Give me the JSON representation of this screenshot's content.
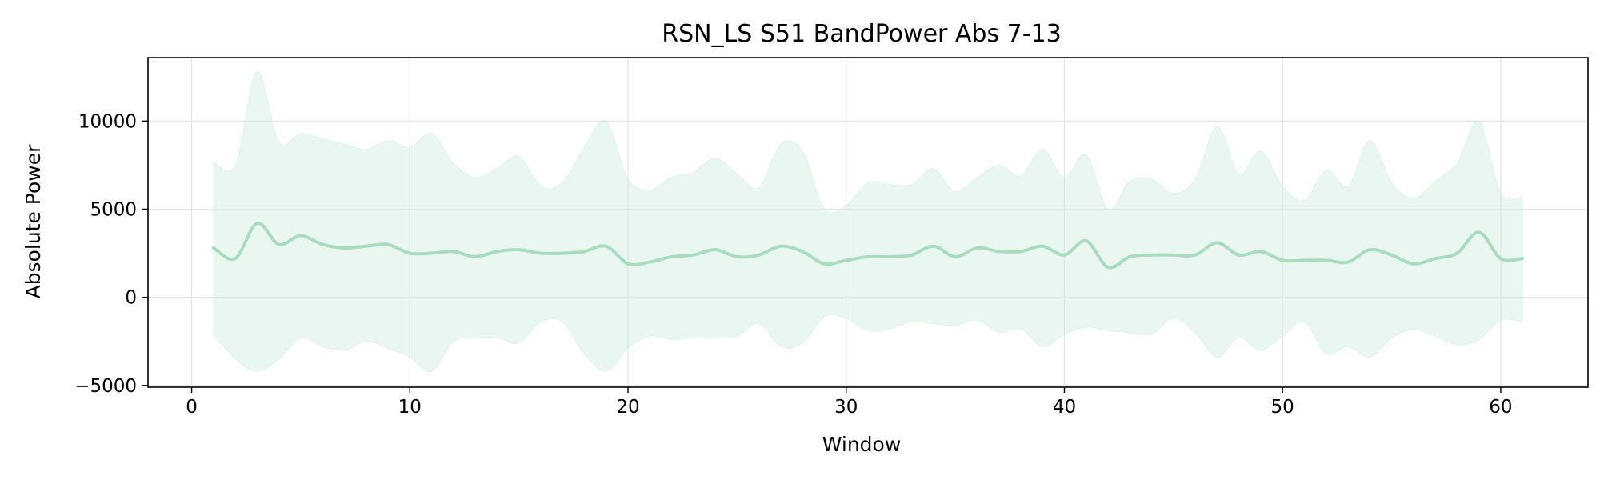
{
  "chart_data": {
    "type": "line",
    "title": "RSN_LS S51 BandPower Abs 7-13",
    "xlabel": "Window",
    "ylabel": "Absolute Power",
    "xlim": [
      -2,
      64
    ],
    "ylim": [
      -5100,
      13600
    ],
    "xticks": [
      0,
      10,
      20,
      30,
      40,
      50,
      60
    ],
    "yticks": [
      -5000,
      0,
      5000,
      10000
    ],
    "ytick_labels": [
      "−5000",
      "0",
      "5000",
      "10000"
    ],
    "grid": true,
    "legend": "none",
    "colors": {
      "line": "#a8dcbf",
      "band": "#cfeedd",
      "grid": "#e6e6e6"
    },
    "x": [
      1,
      2,
      3,
      4,
      5,
      6,
      7,
      8,
      9,
      10,
      11,
      12,
      13,
      14,
      15,
      16,
      17,
      18,
      19,
      20,
      21,
      22,
      23,
      24,
      25,
      26,
      27,
      28,
      29,
      30,
      31,
      32,
      33,
      34,
      35,
      36,
      37,
      38,
      39,
      40,
      41,
      42,
      43,
      44,
      45,
      46,
      47,
      48,
      49,
      50,
      51,
      52,
      53,
      54,
      55,
      56,
      57,
      58,
      59,
      60,
      61
    ],
    "series": [
      {
        "values": [
          2800,
          2200,
          4200,
          3000,
          3500,
          3000,
          2800,
          2900,
          3000,
          2500,
          2500,
          2600,
          2300,
          2600,
          2700,
          2500,
          2500,
          2600,
          2900,
          1900,
          2000,
          2300,
          2400,
          2700,
          2300,
          2400,
          2900,
          2600,
          1900,
          2100,
          2300,
          2300,
          2400,
          2900,
          2300,
          2800,
          2600,
          2600,
          2900,
          2400,
          3200,
          1700,
          2300,
          2400,
          2400,
          2400,
          3100,
          2400,
          2600,
          2100,
          2100,
          2100,
          2000,
          2700,
          2400,
          1900,
          2200,
          2500,
          3700,
          2200,
          2200
        ],
        "upper": [
          7700,
          7500,
          12800,
          8800,
          9300,
          9000,
          8700,
          8400,
          8900,
          8500,
          9300,
          7600,
          6800,
          7300,
          8000,
          6300,
          6500,
          8500,
          10000,
          6700,
          6100,
          6800,
          7100,
          7900,
          7000,
          6200,
          8700,
          8300,
          5000,
          5200,
          6500,
          6400,
          6400,
          7300,
          6000,
          6800,
          7500,
          6900,
          8400,
          6800,
          8100,
          5000,
          6600,
          6700,
          5900,
          6700,
          9700,
          7000,
          8300,
          6300,
          5500,
          7200,
          6300,
          8900,
          6500,
          5600,
          6600,
          7600,
          10000,
          5900,
          5700
        ],
        "lower": [
          -2100,
          -3500,
          -4200,
          -3500,
          -2300,
          -2800,
          -3000,
          -2500,
          -2900,
          -3400,
          -4200,
          -2500,
          -2300,
          -2300,
          -2600,
          -1400,
          -1400,
          -3200,
          -4200,
          -2900,
          -2200,
          -2400,
          -2300,
          -2300,
          -2200,
          -1500,
          -2800,
          -2600,
          -1100,
          -1200,
          -1900,
          -1800,
          -1400,
          -1500,
          -1600,
          -1300,
          -2000,
          -1800,
          -2800,
          -2100,
          -1700,
          -1900,
          -2000,
          -2100,
          -1200,
          -2000,
          -3400,
          -2300,
          -3000,
          -2200,
          -1400,
          -3200,
          -2800,
          -3400,
          -2300,
          -1800,
          -2200,
          -2700,
          -2400,
          -1300,
          -1400
        ]
      }
    ]
  }
}
